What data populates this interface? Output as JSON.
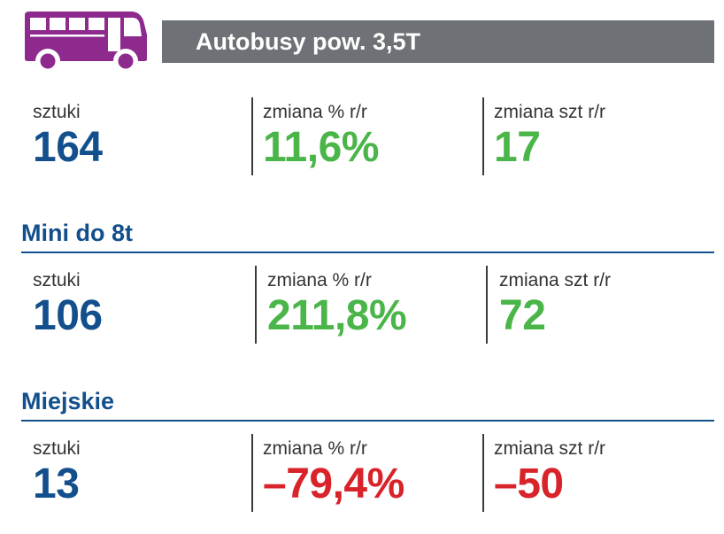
{
  "header": {
    "title": "Autobusy pow. 3,5T",
    "icon": "bus-icon",
    "icon_color": "#8e2a8e",
    "bar_color": "#6e7175"
  },
  "colors": {
    "primary": "#124f8c",
    "positive": "#4ab548",
    "negative": "#d9232a"
  },
  "groups": [
    {
      "title": "",
      "stats": [
        {
          "label": "sztuki",
          "value": "164",
          "tone": "blue"
        },
        {
          "label": "zmiana % r/r",
          "value": "11,6%",
          "tone": "green"
        },
        {
          "label": "zmiana szt r/r",
          "value": "17",
          "tone": "green"
        }
      ]
    },
    {
      "title": "Mini do 8t",
      "stats": [
        {
          "label": "sztuki",
          "value": "106",
          "tone": "blue"
        },
        {
          "label": "zmiana % r/r",
          "value": "211,8%",
          "tone": "green"
        },
        {
          "label": "zmiana szt r/r",
          "value": "72",
          "tone": "green"
        }
      ]
    },
    {
      "title": "Miejskie",
      "stats": [
        {
          "label": "sztuki",
          "value": "13",
          "tone": "blue"
        },
        {
          "label": "zmiana % r/r",
          "value": "–79,4%",
          "tone": "red"
        },
        {
          "label": "zmiana szt r/r",
          "value": "–50",
          "tone": "red"
        }
      ]
    }
  ]
}
